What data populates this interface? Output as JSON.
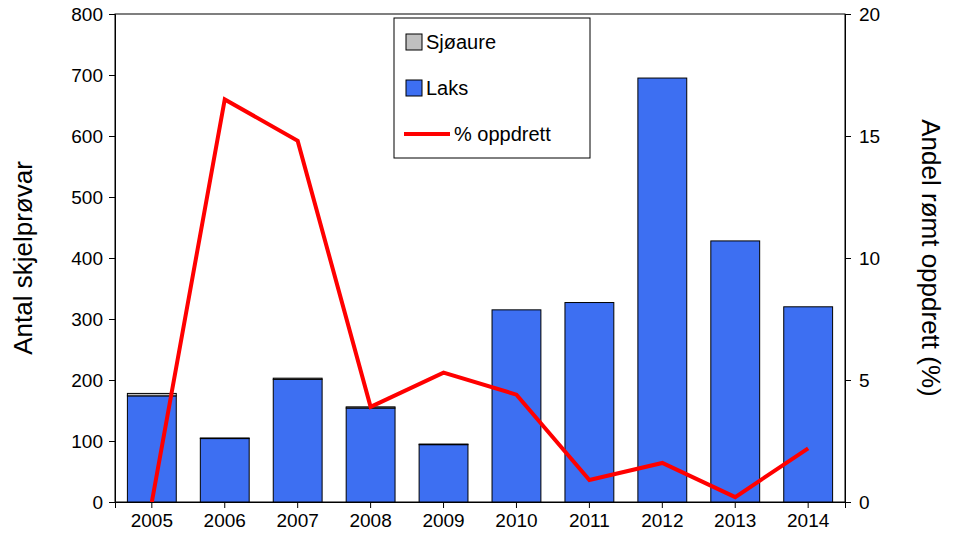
{
  "chart_data": {
    "type": "bar",
    "stacked": true,
    "categories": [
      "2005",
      "2006",
      "2007",
      "2008",
      "2009",
      "2010",
      "2011",
      "2012",
      "2013",
      "2014"
    ],
    "y_label": "Antal skjelprøvar",
    "y2_label": "Andel rømt oppdrett (%)",
    "ylim": [
      0,
      800
    ],
    "yticks": [
      0,
      100,
      200,
      300,
      400,
      500,
      600,
      700,
      800
    ],
    "y2lim": [
      0,
      20
    ],
    "y2ticks": [
      0,
      5,
      10,
      15,
      20
    ],
    "legend": "top",
    "series": [
      {
        "name": "Sjøaure",
        "type": "bar",
        "color": "#c0c0c0",
        "values": [
          4,
          1,
          2,
          2,
          1,
          0,
          0,
          0,
          0,
          0
        ]
      },
      {
        "name": "Laks",
        "type": "bar",
        "color": "#3d6ff2",
        "values": [
          174,
          104,
          201,
          154,
          94,
          315,
          327,
          695,
          428,
          320
        ]
      },
      {
        "name": "% oppdrett",
        "type": "line",
        "axis": "y2",
        "color": "#ff0000",
        "values": [
          0,
          16.5,
          14.8,
          3.9,
          5.3,
          4.4,
          0.9,
          1.6,
          0.2,
          2.2
        ]
      }
    ]
  }
}
